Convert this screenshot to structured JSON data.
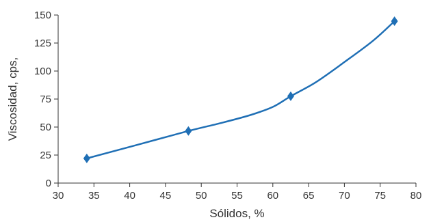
{
  "chart_data": {
    "type": "line",
    "title": "",
    "xlabel": "Sólidos, %",
    "ylabel": "Viscosidad, cps,",
    "xlim": [
      30,
      80
    ],
    "ylim": [
      0,
      150
    ],
    "xticks": [
      30,
      35,
      40,
      45,
      50,
      55,
      60,
      65,
      70,
      75,
      80
    ],
    "yticks": [
      0,
      25,
      50,
      75,
      100,
      125,
      150
    ],
    "grid": false,
    "legend": "none",
    "series_color": "#1f6fb5",
    "series": [
      {
        "markers": [
          {
            "x": 34,
            "y": 22
          },
          {
            "x": 48.2,
            "y": 46.5
          },
          {
            "x": 62.5,
            "y": 77.5
          },
          {
            "x": 77,
            "y": 144.5
          }
        ],
        "curve": [
          {
            "x": 34,
            "y": 22
          },
          {
            "x": 41,
            "y": 34
          },
          {
            "x": 48.2,
            "y": 46.5
          },
          {
            "x": 53,
            "y": 54
          },
          {
            "x": 57,
            "y": 61
          },
          {
            "x": 60,
            "y": 68
          },
          {
            "x": 62.5,
            "y": 77.5
          },
          {
            "x": 66,
            "y": 90
          },
          {
            "x": 70,
            "y": 108
          },
          {
            "x": 74,
            "y": 127
          },
          {
            "x": 77,
            "y": 144.5
          }
        ]
      }
    ]
  }
}
